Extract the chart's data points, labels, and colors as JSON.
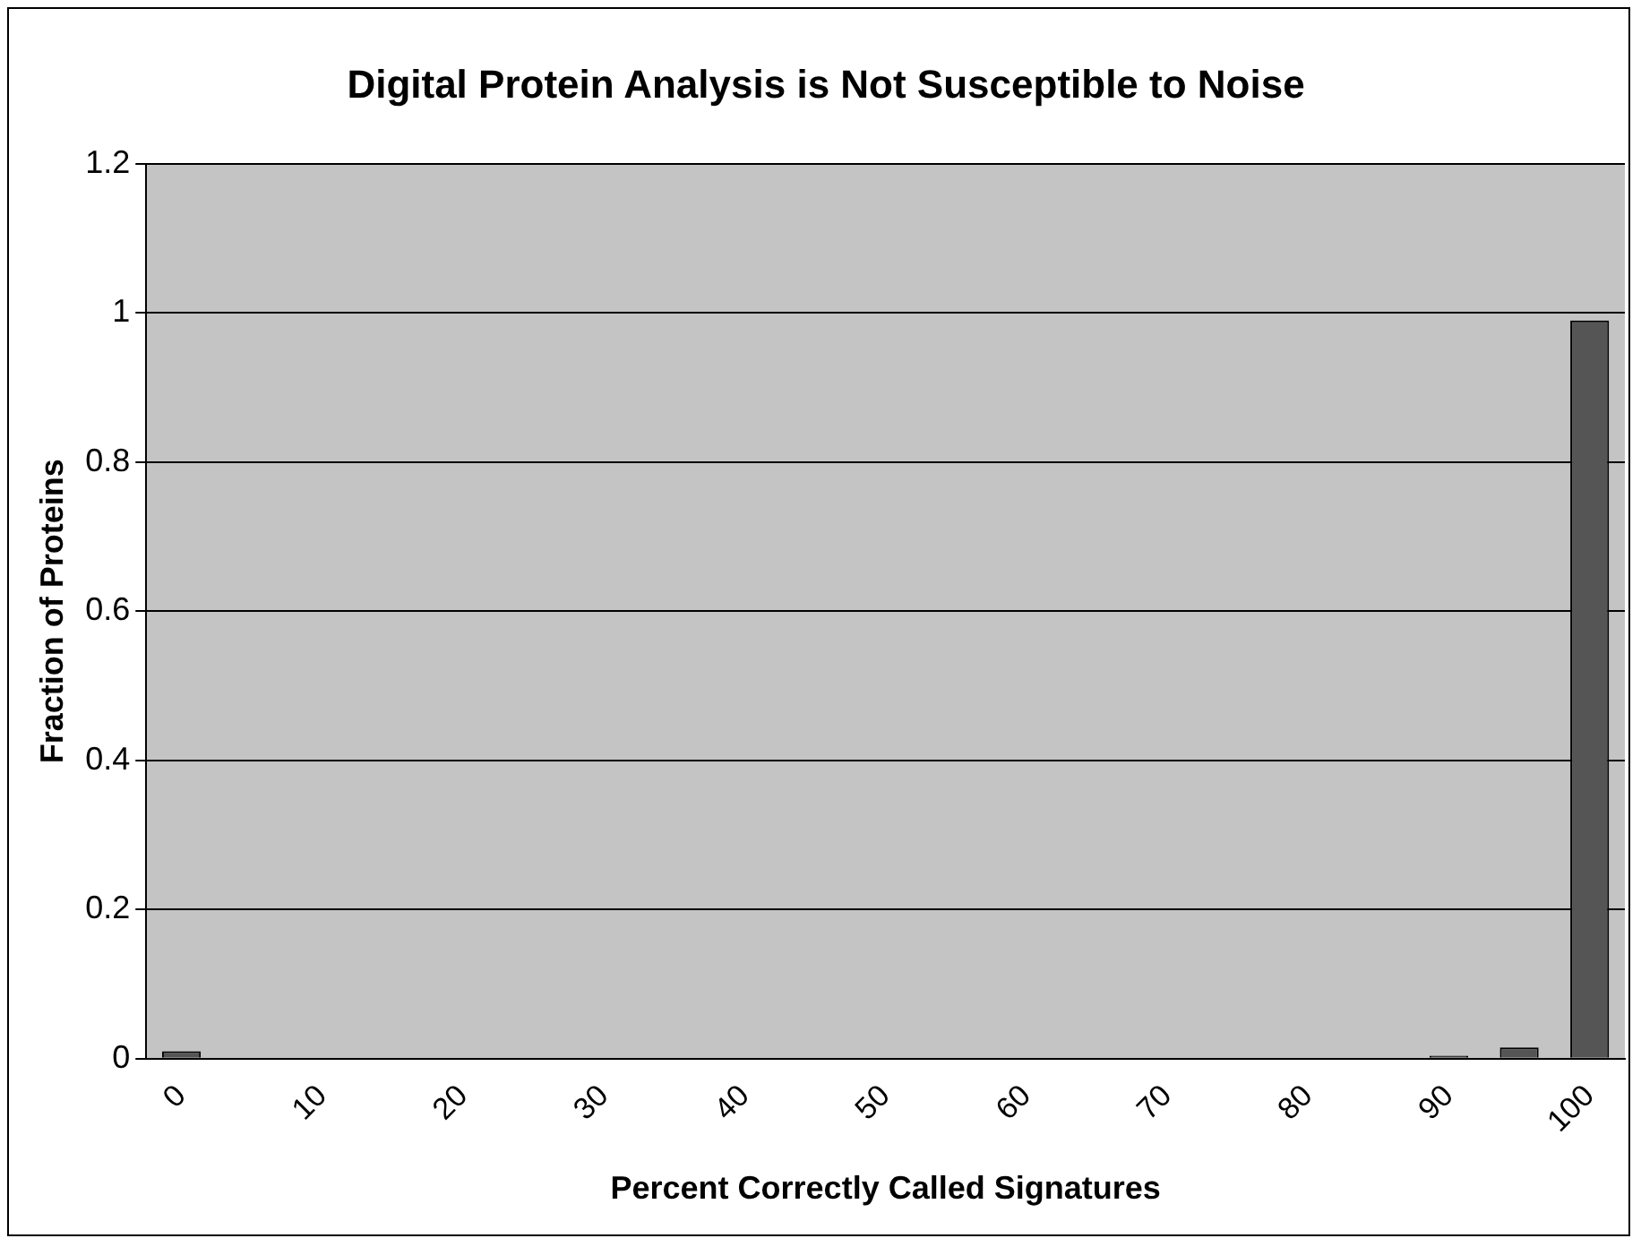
{
  "chart_data": {
    "type": "bar",
    "title": "Digital Protein Analysis is Not Susceptible to Noise",
    "xlabel": "Percent Correctly Called Signatures",
    "ylabel": "Fraction of Proteins",
    "categories": [
      "0",
      null,
      "10",
      null,
      "20",
      null,
      "30",
      null,
      "40",
      null,
      "50",
      null,
      "60",
      null,
      "70",
      null,
      "80",
      null,
      "90",
      null,
      "100"
    ],
    "values": [
      0.01,
      0,
      0,
      0,
      0,
      0,
      0,
      0,
      0,
      0,
      0,
      0,
      0,
      0,
      0,
      0,
      0,
      0,
      0.004,
      0.015,
      0.99
    ],
    "color": "#555555",
    "ylim": [
      0,
      1.2
    ],
    "yticks": [
      0,
      0.2,
      0.4,
      0.6,
      0.8,
      1,
      1.2
    ],
    "grid": "y",
    "legend": false
  }
}
